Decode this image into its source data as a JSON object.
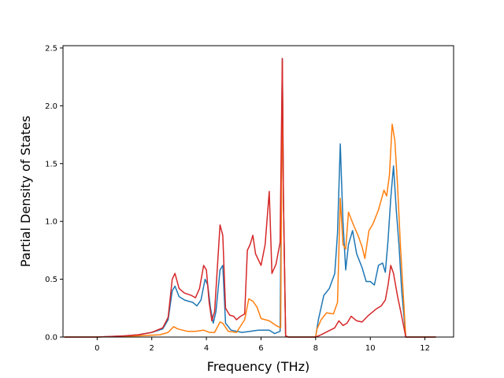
{
  "chart_data": {
    "type": "line",
    "title": "",
    "xlabel": "Frequency (THz)",
    "ylabel": "Partial Density of States",
    "xlim": [
      -1.25,
      13.05
    ],
    "ylim": [
      0,
      2.52
    ],
    "xticks": [
      0,
      2,
      4,
      6,
      8,
      10,
      12
    ],
    "xtick_labels": [
      "0",
      "2",
      "4",
      "6",
      "8",
      "10",
      "12"
    ],
    "yticks": [
      0.0,
      0.5,
      1.0,
      1.5,
      2.0,
      2.5
    ],
    "ytick_labels": [
      "0.0",
      "0.5",
      "1.0",
      "1.5",
      "2.0",
      "2.5"
    ],
    "grid": false,
    "legend": "none",
    "series": [
      {
        "color": "#1f77b4",
        "points": [
          [
            -1.2,
            0
          ],
          [
            0,
            0
          ],
          [
            1,
            0.01
          ],
          [
            1.5,
            0.02
          ],
          [
            2,
            0.04
          ],
          [
            2.4,
            0.07
          ],
          [
            2.6,
            0.15
          ],
          [
            2.75,
            0.4
          ],
          [
            2.85,
            0.44
          ],
          [
            3,
            0.35
          ],
          [
            3.2,
            0.32
          ],
          [
            3.5,
            0.3
          ],
          [
            3.65,
            0.27
          ],
          [
            3.8,
            0.32
          ],
          [
            3.95,
            0.5
          ],
          [
            4.05,
            0.45
          ],
          [
            4.15,
            0.25
          ],
          [
            4.25,
            0.12
          ],
          [
            4.35,
            0.22
          ],
          [
            4.5,
            0.58
          ],
          [
            4.6,
            0.62
          ],
          [
            4.7,
            0.12
          ],
          [
            4.9,
            0.06
          ],
          [
            5.1,
            0.05
          ],
          [
            5.3,
            0.04
          ],
          [
            5.6,
            0.05
          ],
          [
            5.9,
            0.06
          ],
          [
            6.3,
            0.06
          ],
          [
            6.5,
            0.03
          ],
          [
            6.7,
            0.05
          ],
          [
            6.78,
            2.41
          ],
          [
            6.82,
            1.2
          ],
          [
            6.9,
            0.01
          ],
          [
            7,
            0
          ],
          [
            8,
            0
          ],
          [
            8.1,
            0.15
          ],
          [
            8.3,
            0.36
          ],
          [
            8.5,
            0.42
          ],
          [
            8.7,
            0.55
          ],
          [
            8.8,
            0.9
          ],
          [
            8.9,
            1.67
          ],
          [
            9.0,
            1.0
          ],
          [
            9.1,
            0.58
          ],
          [
            9.2,
            0.8
          ],
          [
            9.35,
            0.92
          ],
          [
            9.5,
            0.72
          ],
          [
            9.7,
            0.6
          ],
          [
            9.85,
            0.48
          ],
          [
            10.0,
            0.48
          ],
          [
            10.15,
            0.45
          ],
          [
            10.3,
            0.62
          ],
          [
            10.45,
            0.64
          ],
          [
            10.55,
            0.56
          ],
          [
            10.65,
            0.84
          ],
          [
            10.75,
            1.2
          ],
          [
            10.85,
            1.48
          ],
          [
            10.95,
            1.1
          ],
          [
            11.05,
            0.8
          ],
          [
            11.15,
            0.4
          ],
          [
            11.3,
            0
          ],
          [
            12.4,
            0
          ]
        ]
      },
      {
        "color": "#ff7f0e",
        "points": [
          [
            -1.2,
            0
          ],
          [
            0,
            0
          ],
          [
            1.5,
            0.01
          ],
          [
            2.3,
            0.02
          ],
          [
            2.6,
            0.04
          ],
          [
            2.8,
            0.09
          ],
          [
            2.95,
            0.07
          ],
          [
            3.3,
            0.05
          ],
          [
            3.6,
            0.05
          ],
          [
            3.9,
            0.06
          ],
          [
            4.1,
            0.04
          ],
          [
            4.3,
            0.04
          ],
          [
            4.5,
            0.13
          ],
          [
            4.6,
            0.12
          ],
          [
            4.8,
            0.05
          ],
          [
            5.1,
            0.04
          ],
          [
            5.4,
            0.15
          ],
          [
            5.55,
            0.33
          ],
          [
            5.7,
            0.31
          ],
          [
            5.85,
            0.26
          ],
          [
            6.0,
            0.16
          ],
          [
            6.3,
            0.14
          ],
          [
            6.55,
            0.1
          ],
          [
            6.72,
            0.08
          ],
          [
            6.78,
            2.38
          ],
          [
            6.82,
            1.2
          ],
          [
            6.9,
            0.01
          ],
          [
            7,
            0
          ],
          [
            8,
            0
          ],
          [
            8.05,
            0.07
          ],
          [
            8.2,
            0.15
          ],
          [
            8.4,
            0.21
          ],
          [
            8.65,
            0.2
          ],
          [
            8.8,
            0.3
          ],
          [
            8.9,
            1.2
          ],
          [
            9.0,
            0.8
          ],
          [
            9.1,
            0.76
          ],
          [
            9.2,
            1.08
          ],
          [
            9.4,
            0.96
          ],
          [
            9.55,
            0.88
          ],
          [
            9.7,
            0.78
          ],
          [
            9.8,
            0.68
          ],
          [
            9.95,
            0.92
          ],
          [
            10.1,
            0.98
          ],
          [
            10.3,
            1.1
          ],
          [
            10.5,
            1.27
          ],
          [
            10.6,
            1.22
          ],
          [
            10.7,
            1.4
          ],
          [
            10.8,
            1.84
          ],
          [
            10.9,
            1.7
          ],
          [
            11.0,
            1.3
          ],
          [
            11.1,
            0.8
          ],
          [
            11.2,
            0.4
          ],
          [
            11.3,
            0
          ],
          [
            12.4,
            0
          ]
        ]
      },
      {
        "color": "#d62728",
        "points": [
          [
            -1.2,
            0
          ],
          [
            0,
            0
          ],
          [
            1,
            0.01
          ],
          [
            1.5,
            0.02
          ],
          [
            2,
            0.04
          ],
          [
            2.4,
            0.08
          ],
          [
            2.6,
            0.17
          ],
          [
            2.75,
            0.5
          ],
          [
            2.85,
            0.55
          ],
          [
            3,
            0.42
          ],
          [
            3.2,
            0.38
          ],
          [
            3.45,
            0.36
          ],
          [
            3.6,
            0.34
          ],
          [
            3.75,
            0.42
          ],
          [
            3.9,
            0.62
          ],
          [
            4.0,
            0.58
          ],
          [
            4.1,
            0.3
          ],
          [
            4.2,
            0.14
          ],
          [
            4.3,
            0.22
          ],
          [
            4.4,
            0.6
          ],
          [
            4.5,
            0.97
          ],
          [
            4.6,
            0.88
          ],
          [
            4.7,
            0.25
          ],
          [
            4.85,
            0.19
          ],
          [
            5.0,
            0.18
          ],
          [
            5.1,
            0.15
          ],
          [
            5.25,
            0.18
          ],
          [
            5.4,
            0.2
          ],
          [
            5.5,
            0.75
          ],
          [
            5.6,
            0.8
          ],
          [
            5.7,
            0.88
          ],
          [
            5.8,
            0.72
          ],
          [
            6.0,
            0.62
          ],
          [
            6.15,
            0.8
          ],
          [
            6.3,
            1.26
          ],
          [
            6.4,
            0.55
          ],
          [
            6.55,
            0.63
          ],
          [
            6.7,
            0.82
          ],
          [
            6.78,
            2.41
          ],
          [
            6.82,
            1.2
          ],
          [
            6.9,
            0.01
          ],
          [
            7,
            0
          ],
          [
            8,
            0
          ],
          [
            8.2,
            0.02
          ],
          [
            8.45,
            0.05
          ],
          [
            8.7,
            0.08
          ],
          [
            8.85,
            0.14
          ],
          [
            9.0,
            0.1
          ],
          [
            9.15,
            0.12
          ],
          [
            9.3,
            0.18
          ],
          [
            9.5,
            0.14
          ],
          [
            9.7,
            0.13
          ],
          [
            9.9,
            0.18
          ],
          [
            10.2,
            0.24
          ],
          [
            10.4,
            0.27
          ],
          [
            10.55,
            0.32
          ],
          [
            10.65,
            0.45
          ],
          [
            10.75,
            0.62
          ],
          [
            10.85,
            0.55
          ],
          [
            11.0,
            0.35
          ],
          [
            11.15,
            0.18
          ],
          [
            11.3,
            0
          ],
          [
            12.4,
            0
          ]
        ]
      }
    ]
  }
}
